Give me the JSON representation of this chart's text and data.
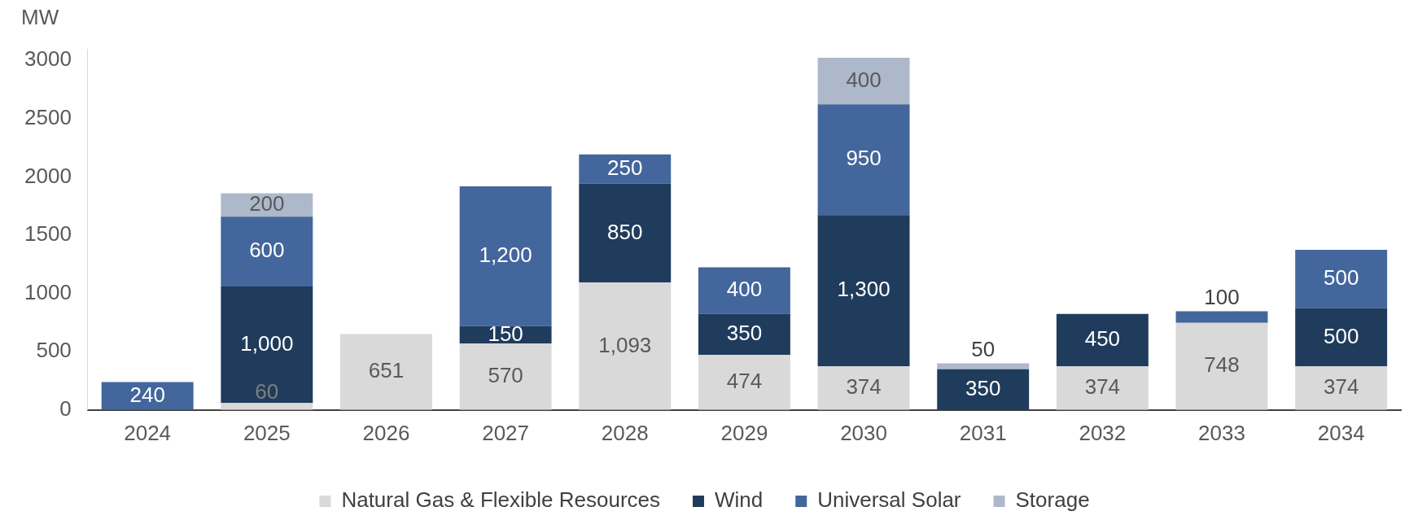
{
  "chart_data": {
    "type": "bar",
    "stacked": true,
    "ylabel": "MW",
    "categories": [
      "2024",
      "2025",
      "2026",
      "2027",
      "2028",
      "2029",
      "2030",
      "2031",
      "2032",
      "2033",
      "2034"
    ],
    "ylim": [
      0,
      3100
    ],
    "yticks": [
      0,
      500,
      1000,
      1500,
      2000,
      2500,
      3000
    ],
    "grid": false,
    "legend": "bottom",
    "data_labels": true,
    "series": [
      {
        "name": "Natural Gas & Flexible Resources",
        "color": "#d9d9d9",
        "values": [
          null,
          60,
          651,
          570,
          1093,
          474,
          374,
          null,
          374,
          748,
          374
        ],
        "value_labels": [
          null,
          "60",
          "651",
          "570",
          "1,093",
          "474",
          "374",
          null,
          "374",
          "748",
          "374"
        ]
      },
      {
        "name": "Wind",
        "color": "#203c5c",
        "values": [
          null,
          1000,
          null,
          150,
          850,
          350,
          1300,
          350,
          450,
          null,
          500
        ],
        "value_labels": [
          null,
          "1,000",
          null,
          "150",
          "850",
          "350",
          "1,300",
          "350",
          "450",
          null,
          "500"
        ]
      },
      {
        "name": "Universal Solar",
        "color": "#43669c",
        "values": [
          240,
          600,
          null,
          1200,
          250,
          400,
          950,
          null,
          null,
          100,
          500
        ],
        "value_labels": [
          "240",
          "600",
          null,
          "1,200",
          "250",
          "400",
          "950",
          null,
          null,
          "100",
          "500"
        ]
      },
      {
        "name": "Storage",
        "color": "#adb9ca",
        "values": [
          null,
          200,
          null,
          null,
          null,
          null,
          400,
          50,
          null,
          null,
          null
        ],
        "value_labels": [
          null,
          "200",
          null,
          null,
          null,
          null,
          "400",
          "50",
          null,
          null,
          null
        ]
      }
    ]
  }
}
